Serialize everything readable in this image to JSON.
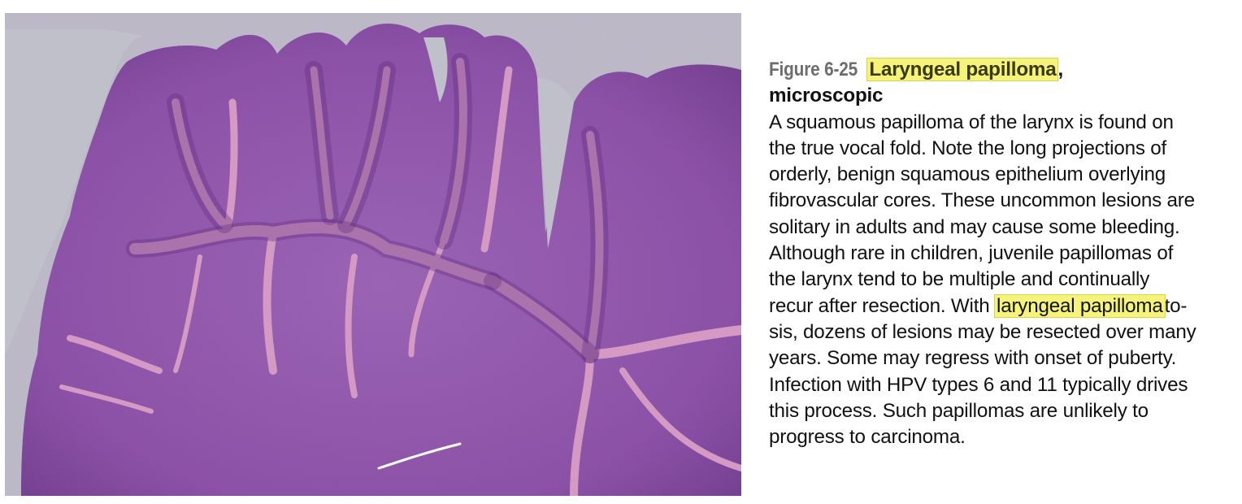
{
  "figure": {
    "image_icon": "histology-micrograph",
    "colors": {
      "background": "#bfc0c9",
      "tissue": "#8a4fa6",
      "tissue_dark": "#6a3487",
      "stroma": "#d59ac4",
      "highlight": "#f6f37a"
    }
  },
  "caption": {
    "figure_number": "Figure 6-25",
    "title_highlight": "Laryngeal papilloma",
    "title_comma": ",",
    "title_line2": "microscopic",
    "lines": [
      "A squamous papilloma of the larynx is found on",
      "the true vocal fold. Note the long projections of",
      "orderly, benign squamous epithelium overlying",
      "fibrovascular cores. These uncommon lesions are",
      "solitary in adults and may cause some bleeding.",
      "Although rare in children, juvenile papillomas of",
      "the larynx tend to be multiple and continually"
    ],
    "line8_prefix": "recur after resection. With ",
    "line8_highlight": "laryngeal papilloma",
    "line8_suffix": "to-",
    "lines_after": [
      "sis, dozens of lesions may be resected over many",
      "years. Some may regress with onset of puberty.",
      "Infection with HPV types 6 and 11 typically drives",
      "this process. Such papillomas are unlikely to",
      "progress to carcinoma."
    ]
  }
}
